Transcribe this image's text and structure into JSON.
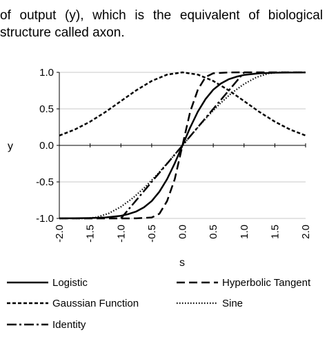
{
  "text": {
    "line1": "of output (y), which is the equivalent of biological",
    "line2": "structure called axon."
  },
  "chart_data": {
    "type": "line",
    "title": "",
    "xlabel": "s",
    "ylabel": "y",
    "xlim": [
      -2.0,
      2.0
    ],
    "ylim": [
      -1.0,
      1.0
    ],
    "x_ticks": [
      "-2.0",
      "-1.5",
      "-1.0",
      "-0.5",
      "0.0",
      "0.5",
      "1.0",
      "1.5",
      "2.0"
    ],
    "y_ticks": [
      "1.0",
      "0.5",
      "0.0",
      "-0.5",
      "-1.0"
    ],
    "grid": "horizontal",
    "legend_position": "bottom",
    "series": [
      {
        "name": "Logistic",
        "style": "solid",
        "x": [
          -2.0,
          -1.75,
          -1.5,
          -1.25,
          -1.0,
          -0.875,
          -0.75,
          -0.625,
          -0.5,
          -0.375,
          -0.25,
          -0.125,
          0.0,
          0.125,
          0.25,
          0.375,
          0.5,
          0.625,
          0.75,
          0.875,
          1.0,
          1.25,
          1.5,
          1.75,
          2.0
        ],
        "y": [
          -0.999,
          -0.997,
          -0.995,
          -0.987,
          -0.964,
          -0.94,
          -0.905,
          -0.848,
          -0.762,
          -0.635,
          -0.462,
          -0.245,
          0.0,
          0.245,
          0.462,
          0.635,
          0.762,
          0.848,
          0.905,
          0.94,
          0.964,
          0.987,
          0.995,
          0.997,
          0.999
        ]
      },
      {
        "name": "Hyperbolic Tangent",
        "style": "long-dash",
        "x": [
          -2.0,
          -1.5,
          -1.0,
          -0.75,
          -0.5,
          -0.375,
          -0.25,
          -0.125,
          0.0,
          0.125,
          0.25,
          0.375,
          0.5,
          0.75,
          1.0,
          1.5,
          2.0
        ],
        "y": [
          -1.0,
          -1.0,
          -1.0,
          -0.999,
          -0.987,
          -0.937,
          -0.762,
          -0.462,
          0.0,
          0.462,
          0.762,
          0.937,
          0.987,
          0.999,
          1.0,
          1.0,
          1.0
        ]
      },
      {
        "name": "Gaussian Function",
        "style": "short-dash",
        "x": [
          -2.0,
          -1.75,
          -1.5,
          -1.25,
          -1.0,
          -0.75,
          -0.5,
          -0.25,
          0.0,
          0.25,
          0.5,
          0.75,
          1.0,
          1.25,
          1.5,
          1.75,
          2.0
        ],
        "y": [
          0.135,
          0.216,
          0.325,
          0.458,
          0.607,
          0.755,
          0.882,
          0.969,
          1.0,
          0.969,
          0.882,
          0.755,
          0.607,
          0.458,
          0.325,
          0.216,
          0.135
        ]
      },
      {
        "name": "Sine",
        "style": "dotted",
        "x": [
          -2.0,
          -1.571,
          -1.4,
          -1.2,
          -1.0,
          -0.8,
          -0.6,
          -0.4,
          -0.2,
          0.0,
          0.2,
          0.4,
          0.6,
          0.8,
          1.0,
          1.2,
          1.4,
          1.571,
          2.0
        ],
        "y": [
          -1.0,
          -1.0,
          -0.985,
          -0.932,
          -0.841,
          -0.717,
          -0.565,
          -0.389,
          -0.199,
          0.0,
          0.199,
          0.389,
          0.565,
          0.717,
          0.841,
          0.932,
          0.985,
          1.0,
          1.0
        ]
      },
      {
        "name": "Identity",
        "style": "dash-dot",
        "x": [
          -1.0,
          1.0
        ],
        "y": [
          -1.0,
          1.0
        ]
      }
    ]
  }
}
